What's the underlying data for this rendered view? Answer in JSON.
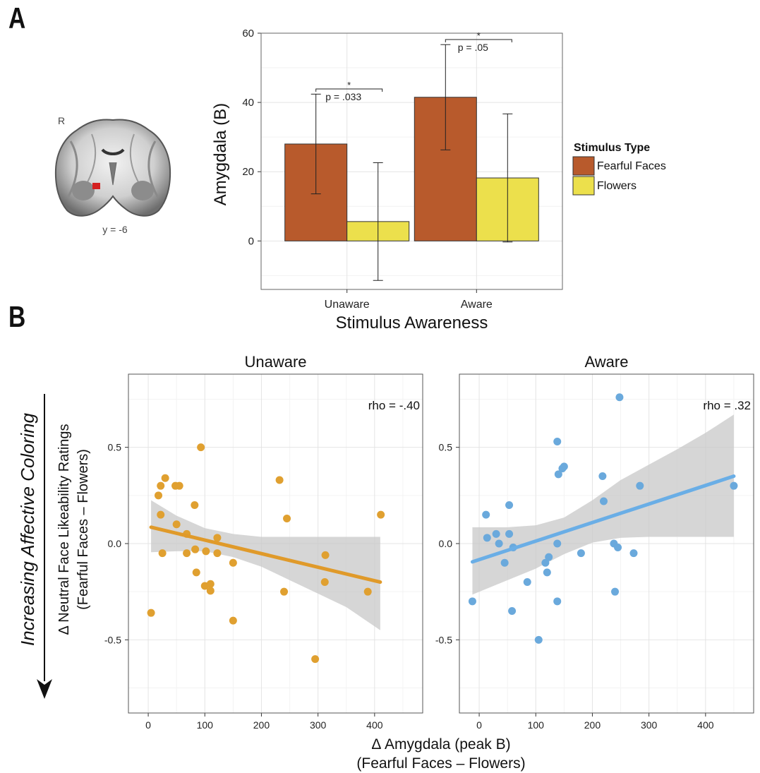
{
  "panel_labels": {
    "a": "A",
    "b": "B"
  },
  "brain": {
    "side_label": "R",
    "slice_label": "y = -6",
    "colors": {
      "highlight": "#d42020"
    }
  },
  "colors": {
    "fearful": "#b85a2c",
    "flowers": "#ece04c",
    "unaware_points": "#e0a030",
    "unaware_line": "#e09a2a",
    "aware_points": "#6aa9dc",
    "aware_line": "#6aaee6",
    "ci_band": "#c8c8c8"
  },
  "chart_data": [
    {
      "type": "bar",
      "ylabel": "Amygdala (B)",
      "xlabel": "Stimulus Awareness",
      "categories": [
        "Unaware",
        "Aware"
      ],
      "ylim": [
        -14,
        60
      ],
      "yticks": [
        "60",
        "40",
        "20",
        "0"
      ],
      "ytick_values": [
        60,
        40,
        20,
        0
      ],
      "grid": true,
      "legend": {
        "title": "Stimulus Type",
        "placement": "right"
      },
      "series": [
        {
          "name": "Fearful Faces",
          "values": [
            28.0,
            41.5
          ],
          "err_low": [
            13.6,
            26.3
          ],
          "err_high": [
            42.4,
            56.7
          ]
        },
        {
          "name": "Flowers",
          "values": [
            5.6,
            18.2
          ],
          "err_low": [
            -11.4,
            -0.3
          ],
          "err_high": [
            22.6,
            36.7
          ]
        }
      ],
      "annotations": [
        {
          "category": "Unaware",
          "star": "*",
          "text": "p = .033"
        },
        {
          "category": "Aware",
          "star": "*",
          "text": "p = .05"
        }
      ]
    },
    {
      "type": "scatter",
      "title": "Unaware",
      "annotation": "rho = -.40",
      "xlim": [
        -35,
        485
      ],
      "ylim": [
        -0.88,
        0.88
      ],
      "xticks": [
        "0",
        "100",
        "200",
        "300",
        "400"
      ],
      "xtick_values": [
        0,
        100,
        200,
        300,
        400
      ],
      "yticks": [
        "0.5",
        "0.0",
        "-0.5"
      ],
      "ytick_values": [
        0.5,
        0.0,
        -0.5
      ],
      "fit": {
        "x0": 5,
        "y0": 0.085,
        "x1": 410,
        "y1": -0.2
      },
      "points": [
        [
          5,
          -0.36
        ],
        [
          18,
          0.25
        ],
        [
          22,
          0.3
        ],
        [
          22,
          0.15
        ],
        [
          25,
          -0.05
        ],
        [
          30,
          0.34
        ],
        [
          48,
          0.3
        ],
        [
          50,
          0.1
        ],
        [
          55,
          0.3
        ],
        [
          68,
          0.05
        ],
        [
          68,
          -0.05
        ],
        [
          82,
          0.2
        ],
        [
          83,
          -0.03
        ],
        [
          85,
          -0.15
        ],
        [
          93,
          0.5
        ],
        [
          100,
          -0.22
        ],
        [
          102,
          -0.04
        ],
        [
          110,
          -0.21
        ],
        [
          110,
          -0.245
        ],
        [
          122,
          0.03
        ],
        [
          122,
          -0.05
        ],
        [
          150,
          -0.1
        ],
        [
          150,
          -0.4
        ],
        [
          232,
          0.33
        ],
        [
          240,
          -0.25
        ],
        [
          245,
          0.13
        ],
        [
          295,
          -0.6
        ],
        [
          312,
          -0.2
        ],
        [
          313,
          -0.06
        ],
        [
          388,
          -0.25
        ],
        [
          411,
          0.15
        ]
      ]
    },
    {
      "type": "scatter",
      "title": "Aware",
      "annotation": "rho = .32",
      "xlim": [
        -35,
        485
      ],
      "ylim": [
        -0.88,
        0.88
      ],
      "xticks": [
        "0",
        "100",
        "200",
        "300",
        "400"
      ],
      "xtick_values": [
        0,
        100,
        200,
        300,
        400
      ],
      "yticks": [
        "0.5",
        "0.0",
        "-0.5"
      ],
      "ytick_values": [
        0.5,
        0.0,
        -0.5
      ],
      "fit": {
        "x0": -12,
        "y0": -0.095,
        "x1": 450,
        "y1": 0.35
      },
      "points": [
        [
          -12,
          -0.3
        ],
        [
          12,
          0.15
        ],
        [
          14,
          0.03
        ],
        [
          30,
          0.05
        ],
        [
          35,
          0.0
        ],
        [
          45,
          -0.1
        ],
        [
          53,
          0.05
        ],
        [
          53,
          0.2
        ],
        [
          58,
          -0.35
        ],
        [
          60,
          -0.02
        ],
        [
          85,
          -0.2
        ],
        [
          105,
          -0.5
        ],
        [
          117,
          -0.1
        ],
        [
          120,
          -0.15
        ],
        [
          123,
          -0.07
        ],
        [
          138,
          0.53
        ],
        [
          138,
          0.0
        ],
        [
          138,
          -0.3
        ],
        [
          140,
          0.36
        ],
        [
          147,
          0.39
        ],
        [
          150,
          0.4
        ],
        [
          180,
          -0.05
        ],
        [
          218,
          0.35
        ],
        [
          220,
          0.22
        ],
        [
          238,
          0.0
        ],
        [
          240,
          -0.25
        ],
        [
          245,
          -0.02
        ],
        [
          248,
          0.76
        ],
        [
          273,
          -0.05
        ],
        [
          284,
          0.3
        ],
        [
          450,
          0.3
        ]
      ]
    }
  ],
  "ci_unaware": {
    "x": [
      5,
      50,
      100,
      150,
      200,
      250,
      300,
      350,
      410
    ],
    "upper": [
      0.225,
      0.145,
      0.08,
      0.05,
      0.035,
      0.035,
      0.035,
      0.035,
      0.035
    ],
    "lower": [
      -0.045,
      -0.04,
      -0.04,
      -0.07,
      -0.12,
      -0.19,
      -0.26,
      -0.33,
      -0.45
    ]
  },
  "ci_aware": {
    "x": [
      -12,
      50,
      100,
      150,
      200,
      250,
      300,
      350,
      400,
      450
    ],
    "upper": [
      0.085,
      0.085,
      0.095,
      0.135,
      0.225,
      0.33,
      0.41,
      0.49,
      0.575,
      0.67
    ],
    "lower": [
      -0.265,
      -0.19,
      -0.13,
      -0.055,
      0.005,
      0.03,
      0.035,
      0.035,
      0.035,
      0.035
    ]
  },
  "panel_b": {
    "ylabel_outer": "Increasing Affective Coloring",
    "ylabel_line1": "Δ Neutral Face Likeability Ratings",
    "ylabel_line2": "(Fearful Faces – Flowers)",
    "xlabel_line1": "Δ Amygdala (peak B)",
    "xlabel_line2": "(Fearful Faces – Flowers)"
  }
}
